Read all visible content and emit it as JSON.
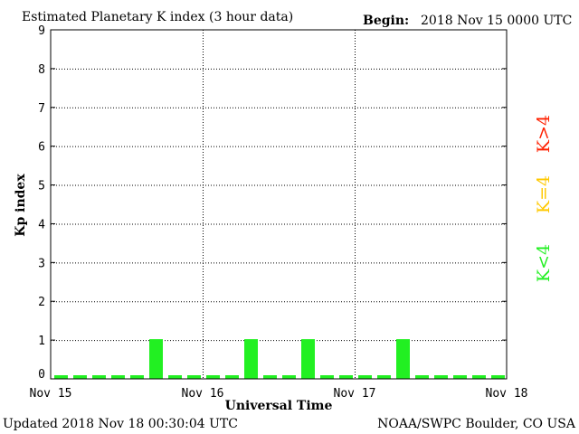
{
  "title": "Estimated Planetary K index (3 hour data)",
  "begin_label": "Begin:",
  "begin_value": "2018 Nov 15 0000 UTC",
  "updated_text": "Updated 2018 Nov 18 00:30:04 UTC",
  "source_text": "NOAA/SWPC Boulder, CO USA",
  "legend": [
    {
      "label": "K>4",
      "color": "#ff2000"
    },
    {
      "label": "K=4",
      "color": "#ffc800"
    },
    {
      "label": "K<4",
      "color": "#22f022"
    }
  ],
  "chart_data": {
    "type": "bar",
    "title": "Estimated Planetary K index (3 hour data)",
    "xlabel": "Universal Time",
    "ylabel": "Kp index",
    "ylim": [
      0,
      9
    ],
    "yticks": [
      0,
      1,
      2,
      3,
      4,
      5,
      6,
      7,
      8,
      9
    ],
    "x_ticks": [
      "Nov 15",
      "Nov 16",
      "Nov 17",
      "Nov 18"
    ],
    "grid": true,
    "interval_hours": 3,
    "bar_color": "#22f022",
    "values": [
      0,
      0,
      0,
      0,
      0,
      1,
      0,
      0,
      0,
      0,
      1,
      0,
      0,
      1,
      0,
      0,
      0,
      0,
      1,
      0,
      0,
      0,
      0,
      0
    ]
  }
}
